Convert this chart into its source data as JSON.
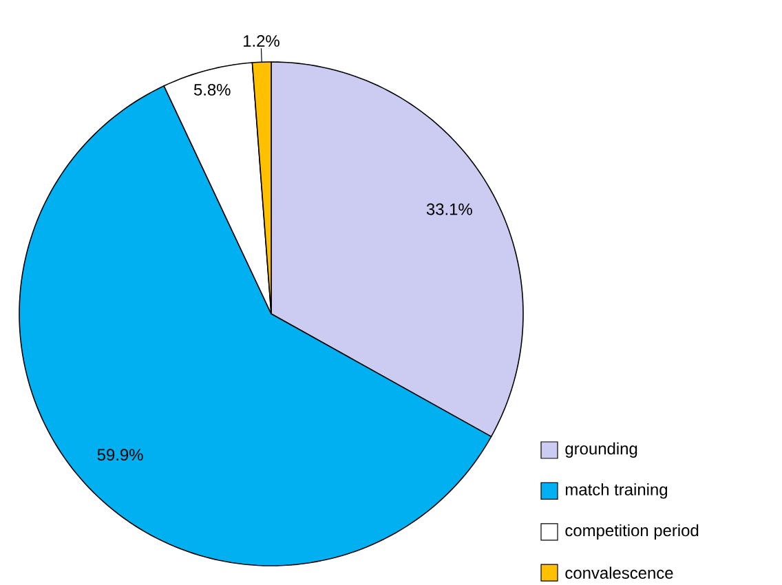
{
  "chart_data": {
    "type": "pie",
    "categories": [
      "grounding",
      "match training",
      "competition period",
      "convalescence"
    ],
    "values": [
      33.1,
      59.9,
      5.8,
      1.2
    ],
    "value_labels": [
      "33.1%",
      "59.9%",
      "5.8%",
      "1.2%"
    ],
    "colors": [
      "#ccccf2",
      "#00b0f0",
      "#ffffff",
      "#ffc000"
    ],
    "legend": "bottom right"
  }
}
